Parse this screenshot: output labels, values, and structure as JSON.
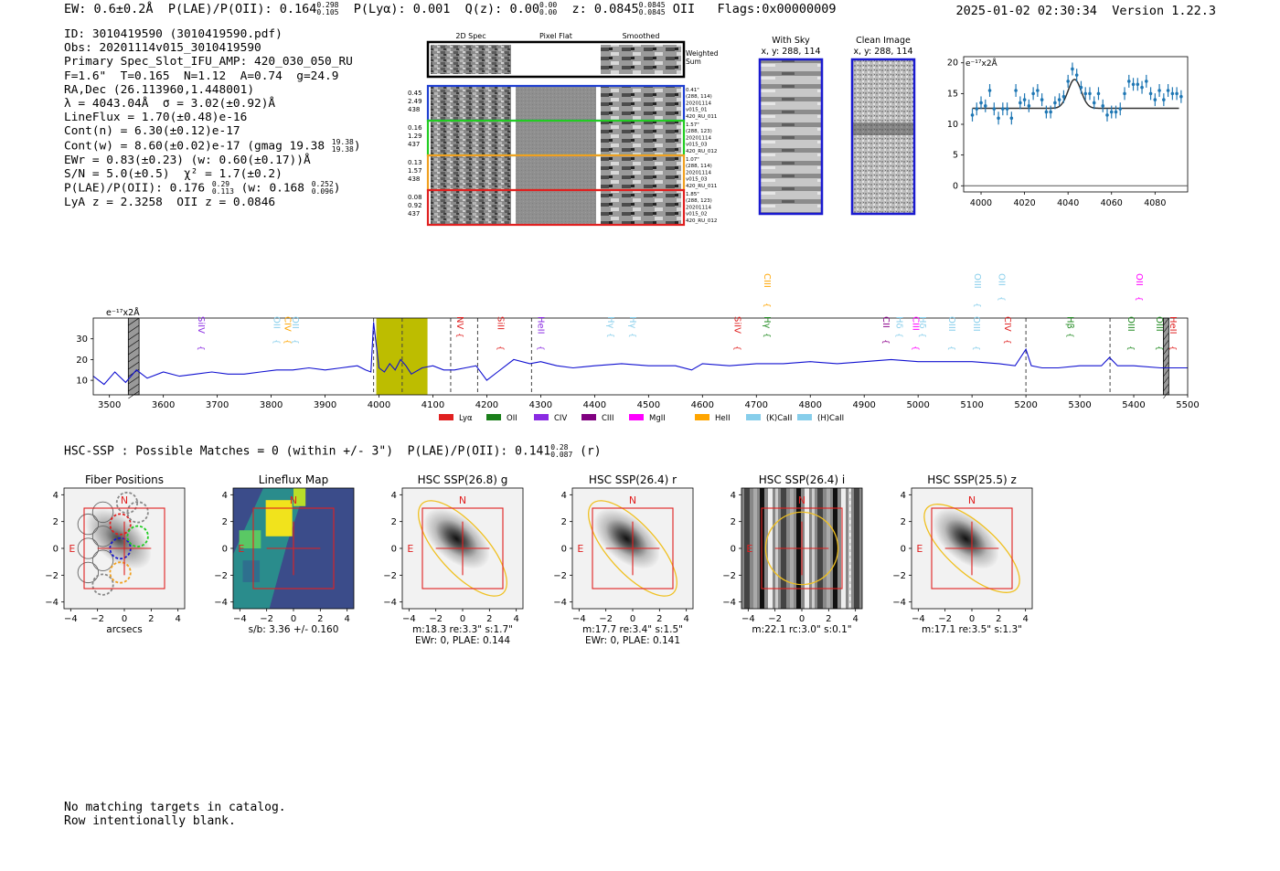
{
  "header": {
    "ew_label": "EW: 0.6±0.2Å",
    "plae_label": "P(LAE)/P(OII): 0.164",
    "plae_hi": "0.298",
    "plae_lo": "0.105",
    "plya_label": "P(Lyα): 0.001",
    "qz_label": "Q(z): 0.00",
    "qz_hi": "0.00",
    "qz_lo": "0.00",
    "z_label": "z: 0.0845",
    "z_hi": "0.0845",
    "z_lo": "0.0845",
    "z_line": "OII",
    "flags": "Flags:0x00000009",
    "datetime": "2025-01-02 02:30:34",
    "version": "Version 1.22.3"
  },
  "info": {
    "id": "ID: 3010419590 (3010419590.pdf)",
    "obs": "Obs: 20201114v015_3010419590",
    "slot": "Primary Spec_Slot_IFU_AMP: 420_030_050_RU",
    "params": "F=1.6\"  T=0.165  N=1.12  A=0.74  g=24.9",
    "radec": "RA,Dec (26.113960,1.448001)",
    "lambda": "λ = 4043.04Å  σ = 3.02(±0.92)Å",
    "lineflux": "LineFlux = 1.70(±0.48)e-16",
    "contn": "Cont(n) = 6.30(±0.12)e-17",
    "contw": "Cont(w) = 8.60(±0.02)e-17 (gmag 19.38",
    "contw_hi": "19.38",
    "contw_lo": "19.38",
    "ewr": "EWr = 0.83(±0.23) (w: 0.60(±0.17))Å",
    "sn": "S/N = 5.0(±0.5)  χ² = 1.7(±0.2)",
    "plae": "P(LAE)/P(OII): 0.176",
    "plae_hi": "0.29",
    "plae_lo": "0.113",
    "plae_w": "(w: 0.168",
    "plae_w_hi": "0.252",
    "plae_w_lo": "0.096",
    "z": "LyA z = 2.3258  OII z = 0.0846"
  },
  "cutouts": {
    "headers": [
      "2D Spec",
      "Pixel Flat",
      "Smoothed"
    ],
    "weighted_label_1": "Weighted",
    "weighted_label_2": "Sum",
    "rows": [
      {
        "left": [
          "0.45",
          "2.49",
          "438"
        ],
        "right": [
          "0.41\"",
          "(288, 114)",
          "20201114",
          "v015_01",
          "420_RU_011"
        ],
        "color": "#1f3fd0"
      },
      {
        "left": [
          "0.16",
          "1.29",
          "437"
        ],
        "right": [
          "1.57\"",
          "(288, 123)",
          "20201114",
          "v015_03",
          "420_RU_012"
        ],
        "color": "#22cc22"
      },
      {
        "left": [
          "0.13",
          "1.57",
          "438"
        ],
        "right": [
          "1.07\"",
          "(288, 114)",
          "20201114",
          "v015_03",
          "420_RU_011"
        ],
        "color": "#f0a020"
      },
      {
        "left": [
          "0.08",
          "0.92",
          "437"
        ],
        "right": [
          "1.85\"",
          "(288, 123)",
          "20201114",
          "v015_02",
          "420_RU_012"
        ],
        "color": "#e02020"
      }
    ],
    "with_sky_title": "With Sky",
    "with_sky_xy": "x, y: 288, 114",
    "clean_title": "Clean Image",
    "clean_xy": "x, y: 288, 114"
  },
  "fit_chart": {
    "type": "scatter",
    "units_label": "e⁻¹⁷x2Å",
    "xlim": [
      3992,
      4095
    ],
    "ylim": [
      -1,
      21
    ],
    "xticks": [
      "4000",
      "4020",
      "4040",
      "4060",
      "4080"
    ],
    "yticks": [
      "0",
      "5",
      "10",
      "15",
      "20"
    ],
    "x": [
      3996,
      3998,
      4000,
      4002,
      4004,
      4006,
      4008,
      4010,
      4012,
      4014,
      4016,
      4018,
      4020,
      4022,
      4024,
      4026,
      4028,
      4030,
      4032,
      4034,
      4036,
      4038,
      4040,
      4042,
      4044,
      4046,
      4048,
      4050,
      4052,
      4054,
      4056,
      4058,
      4060,
      4062,
      4064,
      4066,
      4068,
      4070,
      4072,
      4074,
      4076,
      4078,
      4080,
      4082,
      4084,
      4086,
      4088,
      4090,
      4092
    ],
    "y": [
      11.5,
      12.5,
      13.5,
      13,
      15.5,
      12.5,
      11,
      12.5,
      12.5,
      11,
      15.5,
      13.5,
      14,
      13,
      15,
      15.5,
      14,
      12,
      12,
      13.5,
      14,
      14.5,
      17,
      19,
      18,
      16,
      15,
      15,
      13.5,
      15,
      13,
      11.5,
      12,
      12,
      12.5,
      15,
      17,
      16.5,
      16.5,
      16,
      17,
      15,
      14,
      15.5,
      14,
      15.5,
      15,
      15,
      14.5
    ],
    "model_continuum": 12.6,
    "model_peak_x": 4043,
    "model_amplitude": 4.7,
    "model_sigma": 3.0,
    "model_x_range": [
      3996,
      4091
    ]
  },
  "spectrum": {
    "type": "line",
    "units_label": "e⁻¹⁷x2Å",
    "xlim": [
      3470,
      5500
    ],
    "ylim": [
      3,
      40
    ],
    "xticks": [
      "3500",
      "3600",
      "3700",
      "3800",
      "3900",
      "4000",
      "4100",
      "4200",
      "4300",
      "4400",
      "4500",
      "4600",
      "4700",
      "4800",
      "4900",
      "5000",
      "5100",
      "5200",
      "5300",
      "5400",
      "5500"
    ],
    "yticks": [
      "10",
      "20",
      "30"
    ],
    "x": [
      3470,
      3490,
      3510,
      3530,
      3550,
      3570,
      3600,
      3630,
      3660,
      3690,
      3720,
      3750,
      3780,
      3810,
      3840,
      3870,
      3900,
      3930,
      3960,
      3975,
      3985,
      3990,
      4000,
      4010,
      4020,
      4030,
      4040,
      4050,
      4060,
      4080,
      4100,
      4120,
      4140,
      4160,
      4180,
      4200,
      4220,
      4250,
      4280,
      4300,
      4330,
      4360,
      4400,
      4450,
      4500,
      4550,
      4580,
      4600,
      4650,
      4700,
      4750,
      4800,
      4850,
      4900,
      4950,
      5000,
      5050,
      5100,
      5150,
      5180,
      5200,
      5210,
      5230,
      5260,
      5300,
      5340,
      5355,
      5370,
      5400,
      5450,
      5500
    ],
    "y": [
      12,
      8,
      14,
      9,
      15,
      11,
      14,
      12,
      13,
      14,
      13,
      13,
      14,
      15,
      15,
      16,
      15,
      16,
      17,
      15,
      14,
      38,
      16,
      14,
      18,
      15,
      20,
      17,
      13,
      16,
      17,
      15,
      15,
      16,
      17,
      10,
      14,
      20,
      18,
      19,
      17,
      16,
      17,
      18,
      17,
      17,
      15,
      18,
      17,
      18,
      18,
      19,
      18,
      19,
      20,
      19,
      19,
      19,
      18,
      17,
      25,
      17,
      16,
      16,
      17,
      17,
      21,
      17,
      17,
      16,
      16
    ],
    "dashed_lines": [
      3990,
      4043,
      4133,
      4183,
      4283,
      5200,
      5356
    ],
    "shaded_band": [
      3995,
      4090
    ],
    "hatched_bands": [
      [
        3535,
        3555
      ],
      [
        5455,
        5465
      ]
    ],
    "line_markers": [
      {
        "name": "SiIV",
        "x": 3660,
        "color": "#8a2be2",
        "row": 1
      },
      {
        "name": "OII",
        "x": 3800,
        "color": "#87ceeb",
        "row": 1
      },
      {
        "name": "CIV",
        "x": 3820,
        "color": "#ffa500",
        "row": 1
      },
      {
        "name": "OII",
        "x": 3835,
        "color": "#87ceeb",
        "row": 1
      },
      {
        "name": "NV",
        "x": 4140,
        "color": "#e02020",
        "row": 1
      },
      {
        "name": "SiII",
        "x": 4215,
        "color": "#e02020",
        "row": 1
      },
      {
        "name": "HeII",
        "x": 4290,
        "color": "#8a2be2",
        "row": 1
      },
      {
        "name": "Hγ",
        "x": 4420,
        "color": "#87ceeb",
        "row": 1
      },
      {
        "name": "Hγ",
        "x": 4460,
        "color": "#87ceeb",
        "row": 1
      },
      {
        "name": "SiIV",
        "x": 4655,
        "color": "#e02020",
        "row": 1
      },
      {
        "name": "CIII",
        "x": 4710,
        "color": "#ffa500",
        "row": 0
      },
      {
        "name": "Hγ",
        "x": 4710,
        "color": "#228b22",
        "row": 1
      },
      {
        "name": "CII",
        "x": 4930,
        "color": "#8b008b",
        "row": 1
      },
      {
        "name": "Hδ",
        "x": 4955,
        "color": "#87ceeb",
        "row": 1
      },
      {
        "name": "CIII",
        "x": 4985,
        "color": "#ff00ff",
        "row": 1
      },
      {
        "name": "Hδ",
        "x": 4998,
        "color": "#87ceeb",
        "row": 1
      },
      {
        "name": "OIII",
        "x": 5052,
        "color": "#87ceeb",
        "row": 1
      },
      {
        "name": "OIII",
        "x": 5100,
        "color": "#87ceeb",
        "row": 0
      },
      {
        "name": "OII",
        "x": 5145,
        "color": "#87ceeb",
        "row": 0
      },
      {
        "name": "OIII",
        "x": 5098,
        "color": "#87ceeb",
        "row": 1
      },
      {
        "name": "CIV",
        "x": 5156,
        "color": "#e02020",
        "row": 1
      },
      {
        "name": "Hβ",
        "x": 5272,
        "color": "#228b22",
        "row": 1
      },
      {
        "name": "OIII",
        "x": 5385,
        "color": "#228b22",
        "row": 1
      },
      {
        "name": "OII",
        "x": 5400,
        "color": "#ff00ff",
        "row": 0
      },
      {
        "name": "OIII",
        "x": 5437,
        "color": "#228b22",
        "row": 1
      },
      {
        "name": "HeII",
        "x": 5463,
        "color": "#e02020",
        "row": 1
      }
    ],
    "legend": [
      {
        "label": "Lyα",
        "color": "#e02020"
      },
      {
        "label": "OII",
        "color": "#1a7f1a"
      },
      {
        "label": "CIV",
        "color": "#8a2be2"
      },
      {
        "label": "CIII",
        "color": "#800080"
      },
      {
        "label": "MgII",
        "color": "#ff00ff"
      },
      {
        "label": "HeII",
        "color": "#ffa500"
      },
      {
        "label": "(K)CaII",
        "color": "#87ceeb"
      },
      {
        "label": "(H)CaII",
        "color": "#87ceeb"
      }
    ]
  },
  "hsc": {
    "summary": "HSC-SSP : Possible Matches = 0 (within +/- 3\")  P(LAE)/P(OII): 0.141",
    "summary_hi": "0.28",
    "summary_lo": "0.087",
    "summary_band": "(r)",
    "xticks": [
      "−4",
      "−2",
      "0",
      "2",
      "4"
    ],
    "yticks": [
      "4",
      "2",
      "0",
      "−2",
      "−4"
    ],
    "panels": [
      {
        "title": "Fiber Positions",
        "caption1": "arcsecs",
        "caption2": ""
      },
      {
        "title": "Lineflux Map",
        "caption1": "s/b: 3.36 +/- 0.160",
        "caption2": ""
      },
      {
        "title": "HSC SSP(26.8) g",
        "caption1": "m:18.3  re:3.3\"  s:1.7\"",
        "caption2": "EWr: 0, PLAE: 0.144"
      },
      {
        "title": "HSC SSP(26.4) r",
        "caption1": "m:17.7  re:3.4\"  s:1.5\"",
        "caption2": "EWr: 0, PLAE: 0.141"
      },
      {
        "title": "HSC SSP(26.4) i",
        "caption1": "m:22.1 rc:3.0\"  s:0.1\"",
        "caption2": ""
      },
      {
        "title": "HSC SSP(25.5) z",
        "caption1": "m:17.1  re:3.5\"  s:1.3\"",
        "caption2": ""
      }
    ],
    "north": "N",
    "east": "E"
  },
  "note": {
    "line1": "No matching targets in catalog.",
    "line2": "Row intentionally blank."
  }
}
